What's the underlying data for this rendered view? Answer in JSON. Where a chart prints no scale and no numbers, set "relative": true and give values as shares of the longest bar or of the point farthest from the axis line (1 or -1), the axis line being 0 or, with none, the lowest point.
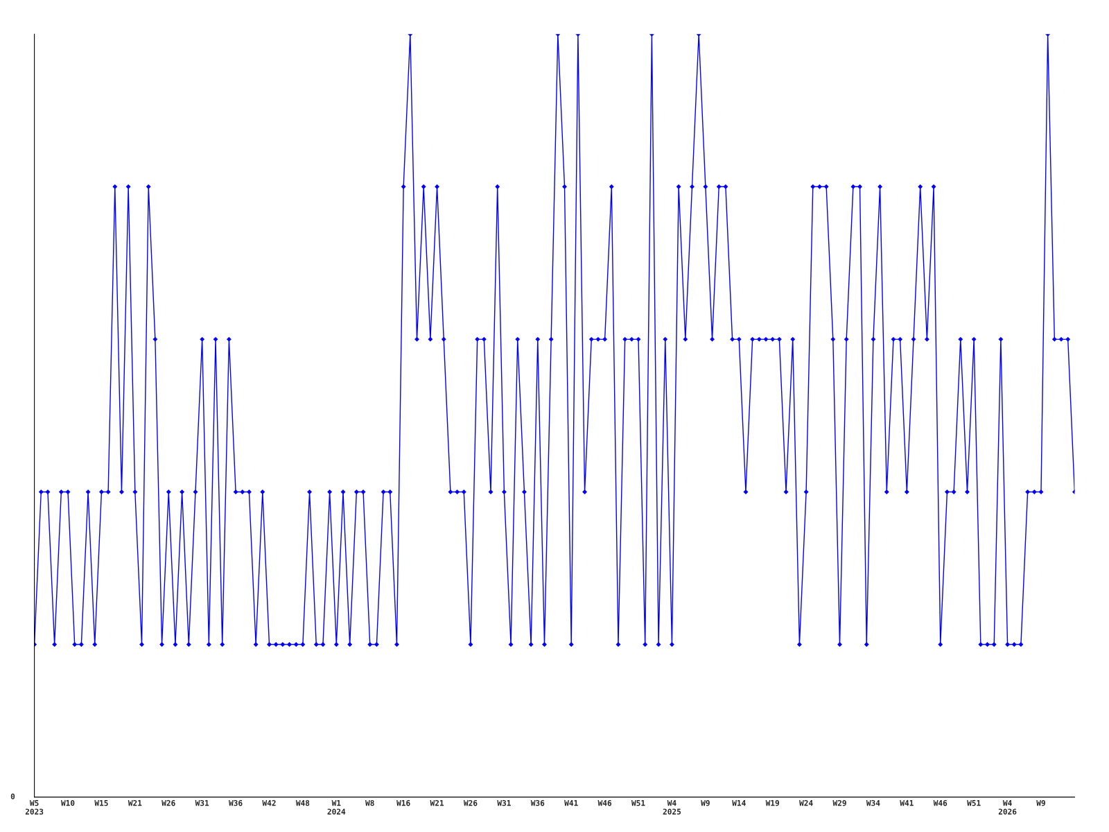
{
  "chart_data": {
    "type": "line",
    "relative": true,
    "annotations": [
      "0"
    ],
    "marker": "diamond",
    "line_style": "solid",
    "grid": false,
    "categories": [
      "W5\n2023",
      null,
      null,
      null,
      null,
      "W10",
      null,
      null,
      null,
      null,
      "W15",
      null,
      null,
      null,
      null,
      "W21",
      null,
      null,
      null,
      null,
      "W26",
      null,
      null,
      null,
      null,
      "W31",
      null,
      null,
      null,
      null,
      "W36",
      null,
      null,
      null,
      null,
      "W42",
      null,
      null,
      null,
      null,
      "W48",
      null,
      null,
      null,
      null,
      "W1\n2024",
      null,
      null,
      null,
      null,
      "W8",
      null,
      null,
      null,
      null,
      "W16",
      null,
      null,
      null,
      null,
      "W21",
      null,
      null,
      null,
      null,
      "W26",
      null,
      null,
      null,
      null,
      "W31",
      null,
      null,
      null,
      null,
      "W36",
      null,
      null,
      null,
      null,
      "W41",
      null,
      null,
      null,
      null,
      "W46",
      null,
      null,
      null,
      null,
      "W51",
      null,
      null,
      null,
      null,
      "W4\n2025",
      null,
      null,
      null,
      null,
      "W9",
      null,
      null,
      null,
      null,
      "W14",
      null,
      null,
      null,
      null,
      "W19",
      null,
      null,
      null,
      null,
      "W24",
      null,
      null,
      null,
      null,
      "W29",
      null,
      null,
      null,
      null,
      "W34",
      null,
      null,
      null,
      null,
      "W41",
      null,
      null,
      null,
      null,
      "W46",
      null,
      null,
      null,
      null,
      "W51",
      null,
      null,
      null,
      null,
      "W4\n2026",
      null,
      null,
      null,
      null,
      "W9",
      null,
      null,
      null,
      null,
      null
    ],
    "series": [
      {
        "color": "#0000ff",
        "values": [
          0.2,
          0.4,
          0.4,
          0.2,
          0.4,
          0.4,
          0.2,
          0.2,
          0.4,
          0.2,
          0.4,
          0.4,
          0.8,
          0.4,
          0.8,
          0.4,
          0.2,
          0.8,
          0.6,
          0.2,
          0.4,
          0.2,
          0.4,
          0.2,
          0.4,
          0.6,
          0.2,
          0.6,
          0.2,
          0.6,
          0.4,
          0.4,
          0.4,
          0.2,
          0.4,
          0.2,
          0.2,
          0.2,
          0.2,
          0.2,
          0.2,
          0.4,
          0.2,
          0.2,
          0.4,
          0.2,
          0.4,
          0.2,
          0.4,
          0.4,
          0.2,
          0.2,
          0.4,
          0.4,
          0.2,
          0.8,
          1,
          0.6,
          0.8,
          0.6,
          0.8,
          0.6,
          0.4,
          0.4,
          0.4,
          0.2,
          0.6,
          0.6,
          0.4,
          0.8,
          0.4,
          0.2,
          0.6,
          0.4,
          0.2,
          0.6,
          0.2,
          0.6,
          1,
          0.8,
          0.2,
          1,
          0.4,
          0.6,
          0.6,
          0.6,
          0.8,
          0.2,
          0.6,
          0.6,
          0.6,
          0.2,
          1,
          0.2,
          0.6,
          0.2,
          0.8,
          0.6,
          0.8,
          1,
          0.8,
          0.6,
          0.8,
          0.8,
          0.6,
          0.6,
          0.4,
          0.6,
          0.6,
          0.6,
          0.6,
          0.6,
          0.4,
          0.6,
          0.2,
          0.4,
          0.8,
          0.8,
          0.8,
          0.6,
          0.2,
          0.6,
          0.8,
          0.8,
          0.2,
          0.6,
          0.8,
          0.4,
          0.6,
          0.6,
          0.4,
          0.6,
          0.8,
          0.6,
          0.8,
          0.2,
          0.4,
          0.4,
          0.6,
          0.4,
          0.6,
          0.2,
          0.2,
          0.2,
          0.6,
          0.2,
          0.2,
          0.2,
          0.4,
          0.4,
          0.4,
          1,
          0.6,
          0.6,
          0.6,
          0.4
        ]
      }
    ]
  }
}
